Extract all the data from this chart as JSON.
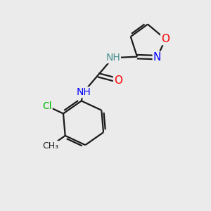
{
  "background_color": "#ebebeb",
  "bond_color": "#1a1a1a",
  "bond_width": 1.6,
  "atom_colors": {
    "N": "#0000ff",
    "O_iso": "#ff0000",
    "O_carb": "#ff0000",
    "Cl": "#00bb00",
    "C": "#1a1a1a",
    "H": "#4a9090"
  },
  "font_size": 10,
  "figsize": [
    3.0,
    3.0
  ],
  "dpi": 100,
  "xlim": [
    0,
    10
  ],
  "ylim": [
    0,
    10
  ]
}
